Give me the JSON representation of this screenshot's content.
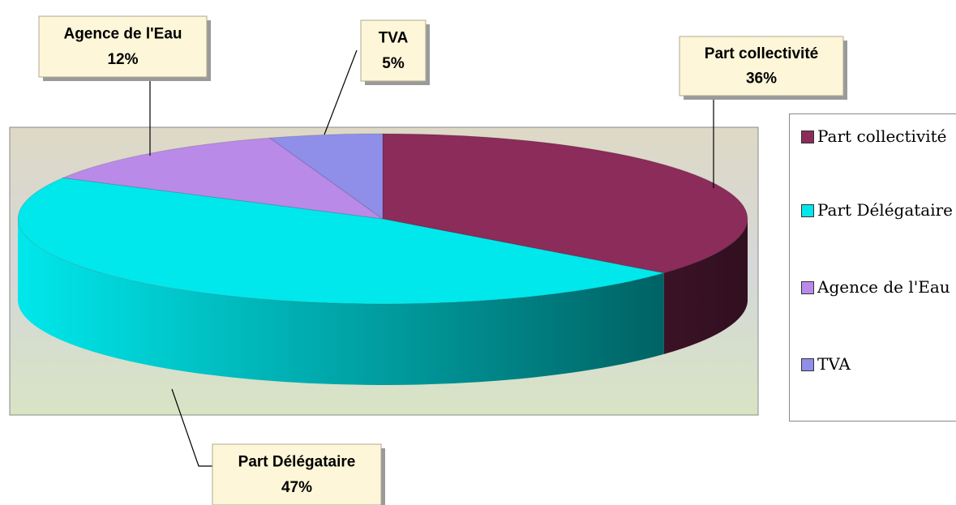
{
  "chart_data": {
    "type": "pie",
    "categories": [
      "Part collectivité",
      "Part Délégataire",
      "Agence de l'Eau",
      "TVA"
    ],
    "values": [
      36,
      47,
      12,
      5
    ],
    "value_labels": [
      "36%",
      "47%",
      "12%",
      "5%"
    ],
    "colors": [
      "#8b2c5a",
      "#00e8ec",
      "#b98ae8",
      "#8f8fea"
    ],
    "legend": "right"
  }
}
